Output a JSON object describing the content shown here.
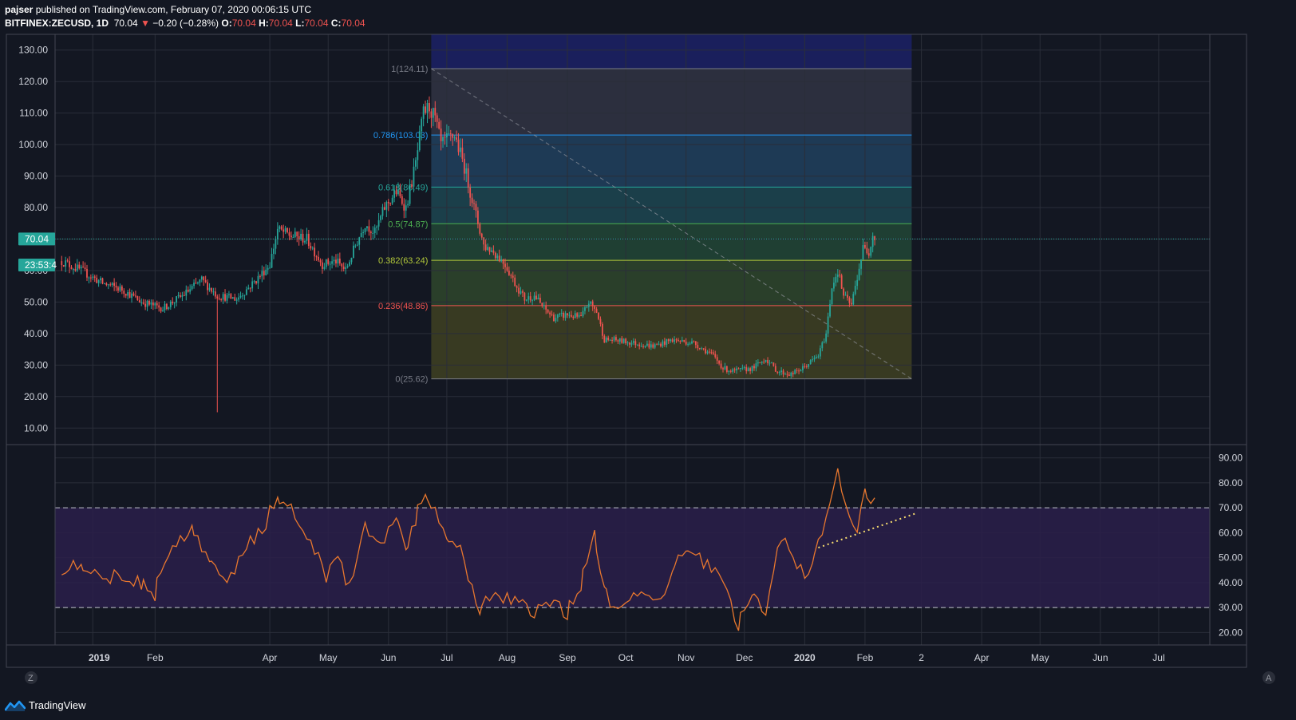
{
  "header": {
    "author": "pajser",
    "published_text": "published on TradingView.com, February 07, 2020 00:06:15 UTC",
    "symbol": "BITFINEX:ZECUSD, 1D",
    "last": "70.04",
    "arrow": "▼",
    "change": "−0.20 (−0.28%)",
    "o_label": "O:",
    "o_value": "70.04",
    "h_label": "H:",
    "h_value": "70.04",
    "l_label": "L:",
    "l_value": "70.04",
    "c_label": "C:",
    "c_value": "70.04"
  },
  "price_badge": "70.04",
  "time_badge": "23:53:4",
  "footer": {
    "brand": "TradingView"
  },
  "buttons": {
    "left": "Z",
    "right": "A"
  },
  "colors": {
    "background": "#131722",
    "grid": "#2a2e39",
    "up": "#26a69a",
    "down": "#ef5350",
    "rsi": "#e8772e",
    "rsi_band": "#2a1f4a",
    "badge": "#26a69a",
    "trendline": "#f7dc6f"
  },
  "chart_data": [
    {
      "type": "candlestick",
      "symbol": "BITFINEX:ZECUSD",
      "interval": "1D",
      "ylim": [
        5,
        135
      ],
      "y_ticks": [
        "130.00",
        "120.00",
        "110.00",
        "100.00",
        "90.00",
        "80.00",
        "70.00",
        "60.00",
        "50.00",
        "40.00",
        "30.00",
        "20.00",
        "10.00"
      ],
      "x_tick_labels": [
        "2019",
        "Feb",
        "Apr",
        "May",
        "Jun",
        "Jul",
        "Aug",
        "Sep",
        "Oct",
        "Nov",
        "Dec",
        "2020",
        "Feb",
        "2",
        "Apr",
        "May",
        "Jun",
        "Jul"
      ],
      "last_price": 70.04,
      "close_path": [
        [
          "2018-12-15",
          63
        ],
        [
          "2018-12-25",
          60
        ],
        [
          "2019-01-05",
          56
        ],
        [
          "2019-01-15",
          54
        ],
        [
          "2019-01-25",
          50
        ],
        [
          "2019-02-05",
          48
        ],
        [
          "2019-02-15",
          52
        ],
        [
          "2019-02-25",
          57
        ],
        [
          "2019-03-05",
          52
        ],
        [
          "2019-03-15",
          51
        ],
        [
          "2019-03-25",
          57
        ],
        [
          "2019-04-01",
          62
        ],
        [
          "2019-04-05",
          73
        ],
        [
          "2019-04-12",
          71
        ],
        [
          "2019-04-20",
          70
        ],
        [
          "2019-04-28",
          62
        ],
        [
          "2019-05-05",
          63
        ],
        [
          "2019-05-10",
          60
        ],
        [
          "2019-05-15",
          68
        ],
        [
          "2019-05-20",
          75
        ],
        [
          "2019-05-25",
          72
        ],
        [
          "2019-05-30",
          80
        ],
        [
          "2019-06-05",
          85
        ],
        [
          "2019-06-10",
          80
        ],
        [
          "2019-06-15",
          94
        ],
        [
          "2019-06-19",
          110
        ],
        [
          "2019-06-22",
          112
        ],
        [
          "2019-06-25",
          108
        ],
        [
          "2019-06-28",
          100
        ],
        [
          "2019-07-05",
          103
        ],
        [
          "2019-07-10",
          93
        ],
        [
          "2019-07-15",
          80
        ],
        [
          "2019-07-20",
          68
        ],
        [
          "2019-07-25",
          66
        ],
        [
          "2019-07-31",
          62
        ],
        [
          "2019-08-05",
          56
        ],
        [
          "2019-08-10",
          51
        ],
        [
          "2019-08-15",
          52
        ],
        [
          "2019-08-20",
          48
        ],
        [
          "2019-08-25",
          45
        ],
        [
          "2019-09-01",
          46
        ],
        [
          "2019-09-08",
          45
        ],
        [
          "2019-09-12",
          50
        ],
        [
          "2019-09-16",
          47
        ],
        [
          "2019-09-20",
          38
        ],
        [
          "2019-09-25",
          38
        ],
        [
          "2019-10-05",
          37
        ],
        [
          "2019-10-15",
          36
        ],
        [
          "2019-10-25",
          38
        ],
        [
          "2019-11-05",
          37
        ],
        [
          "2019-11-15",
          33
        ],
        [
          "2019-11-20",
          29
        ],
        [
          "2019-11-25",
          28
        ],
        [
          "2019-12-05",
          29
        ],
        [
          "2019-12-12",
          32
        ],
        [
          "2019-12-18",
          28
        ],
        [
          "2019-12-25",
          27
        ],
        [
          "2019-12-31",
          29
        ],
        [
          "2020-01-08",
          33
        ],
        [
          "2020-01-12",
          40
        ],
        [
          "2020-01-15",
          55
        ],
        [
          "2020-01-18",
          60
        ],
        [
          "2020-01-21",
          52
        ],
        [
          "2020-01-25",
          49
        ],
        [
          "2020-01-28",
          58
        ],
        [
          "2020-01-31",
          67
        ],
        [
          "2020-02-03",
          66
        ],
        [
          "2020-02-05",
          72
        ],
        [
          "2020-02-06",
          70.04
        ]
      ],
      "fibonacci": [
        {
          "label": "1(124.11)",
          "value": 124.11,
          "color": "#787b86"
        },
        {
          "label": "0.786(103.03)",
          "value": 103.03,
          "color": "#2196f3"
        },
        {
          "label": "0.618(86.49)",
          "value": 86.49,
          "color": "#26a69a"
        },
        {
          "label": "0.5(74.87)",
          "value": 74.87,
          "color": "#4caf50"
        },
        {
          "label": "0.382(63.24)",
          "value": 63.24,
          "color": "#b2c83a"
        },
        {
          "label": "0.236(48.86)",
          "value": 48.86,
          "color": "#ef5350"
        },
        {
          "label": "0(25.62)",
          "value": 25.62,
          "color": "#787b86"
        }
      ],
      "fib_start": "2019-06-23",
      "fib_end": "2020-02-25"
    },
    {
      "type": "line",
      "indicator": "RSI",
      "ylim": [
        15,
        95
      ],
      "y_ticks": [
        "90.00",
        "80.00",
        "70.00",
        "60.00",
        "50.00",
        "40.00",
        "30.00",
        "20.00"
      ],
      "overbought": 70,
      "oversold": 30,
      "series": [
        [
          "2018-12-15",
          46
        ],
        [
          "2018-12-25",
          48
        ],
        [
          "2019-01-05",
          42
        ],
        [
          "2019-01-15",
          43
        ],
        [
          "2019-01-25",
          40
        ],
        [
          "2019-02-01",
          35
        ],
        [
          "2019-02-10",
          55
        ],
        [
          "2019-02-20",
          62
        ],
        [
          "2019-03-01",
          48
        ],
        [
          "2019-03-10",
          40
        ],
        [
          "2019-03-20",
          55
        ],
        [
          "2019-03-28",
          60
        ],
        [
          "2019-04-05",
          76
        ],
        [
          "2019-04-12",
          70
        ],
        [
          "2019-04-20",
          60
        ],
        [
          "2019-04-30",
          42
        ],
        [
          "2019-05-06",
          50
        ],
        [
          "2019-05-12",
          38
        ],
        [
          "2019-05-20",
          62
        ],
        [
          "2019-05-28",
          55
        ],
        [
          "2019-06-05",
          68
        ],
        [
          "2019-06-10",
          52
        ],
        [
          "2019-06-15",
          65
        ],
        [
          "2019-06-20",
          75
        ],
        [
          "2019-06-25",
          70
        ],
        [
          "2019-07-01",
          60
        ],
        [
          "2019-07-08",
          55
        ],
        [
          "2019-07-12",
          40
        ],
        [
          "2019-07-18",
          30
        ],
        [
          "2019-07-25",
          36
        ],
        [
          "2019-08-05",
          32
        ],
        [
          "2019-08-15",
          28
        ],
        [
          "2019-08-25",
          32
        ],
        [
          "2019-09-01",
          28
        ],
        [
          "2019-09-08",
          38
        ],
        [
          "2019-09-15",
          60
        ],
        [
          "2019-09-20",
          40
        ],
        [
          "2019-09-25",
          28
        ],
        [
          "2019-10-05",
          35
        ],
        [
          "2019-10-15",
          32
        ],
        [
          "2019-10-25",
          42
        ],
        [
          "2019-11-01",
          55
        ],
        [
          "2019-11-10",
          48
        ],
        [
          "2019-11-20",
          40
        ],
        [
          "2019-11-28",
          22
        ],
        [
          "2019-12-05",
          35
        ],
        [
          "2019-12-12",
          28
        ],
        [
          "2019-12-18",
          52
        ],
        [
          "2019-12-22",
          58
        ],
        [
          "2019-12-28",
          44
        ],
        [
          "2020-01-05",
          45
        ],
        [
          "2020-01-12",
          65
        ],
        [
          "2020-01-18",
          88
        ],
        [
          "2020-01-22",
          70
        ],
        [
          "2020-01-28",
          60
        ],
        [
          "2020-02-01",
          75
        ],
        [
          "2020-02-04",
          72
        ],
        [
          "2020-02-06",
          74
        ]
      ],
      "trendline": [
        [
          "2020-01-08",
          54
        ],
        [
          "2020-02-28",
          68
        ]
      ]
    }
  ]
}
